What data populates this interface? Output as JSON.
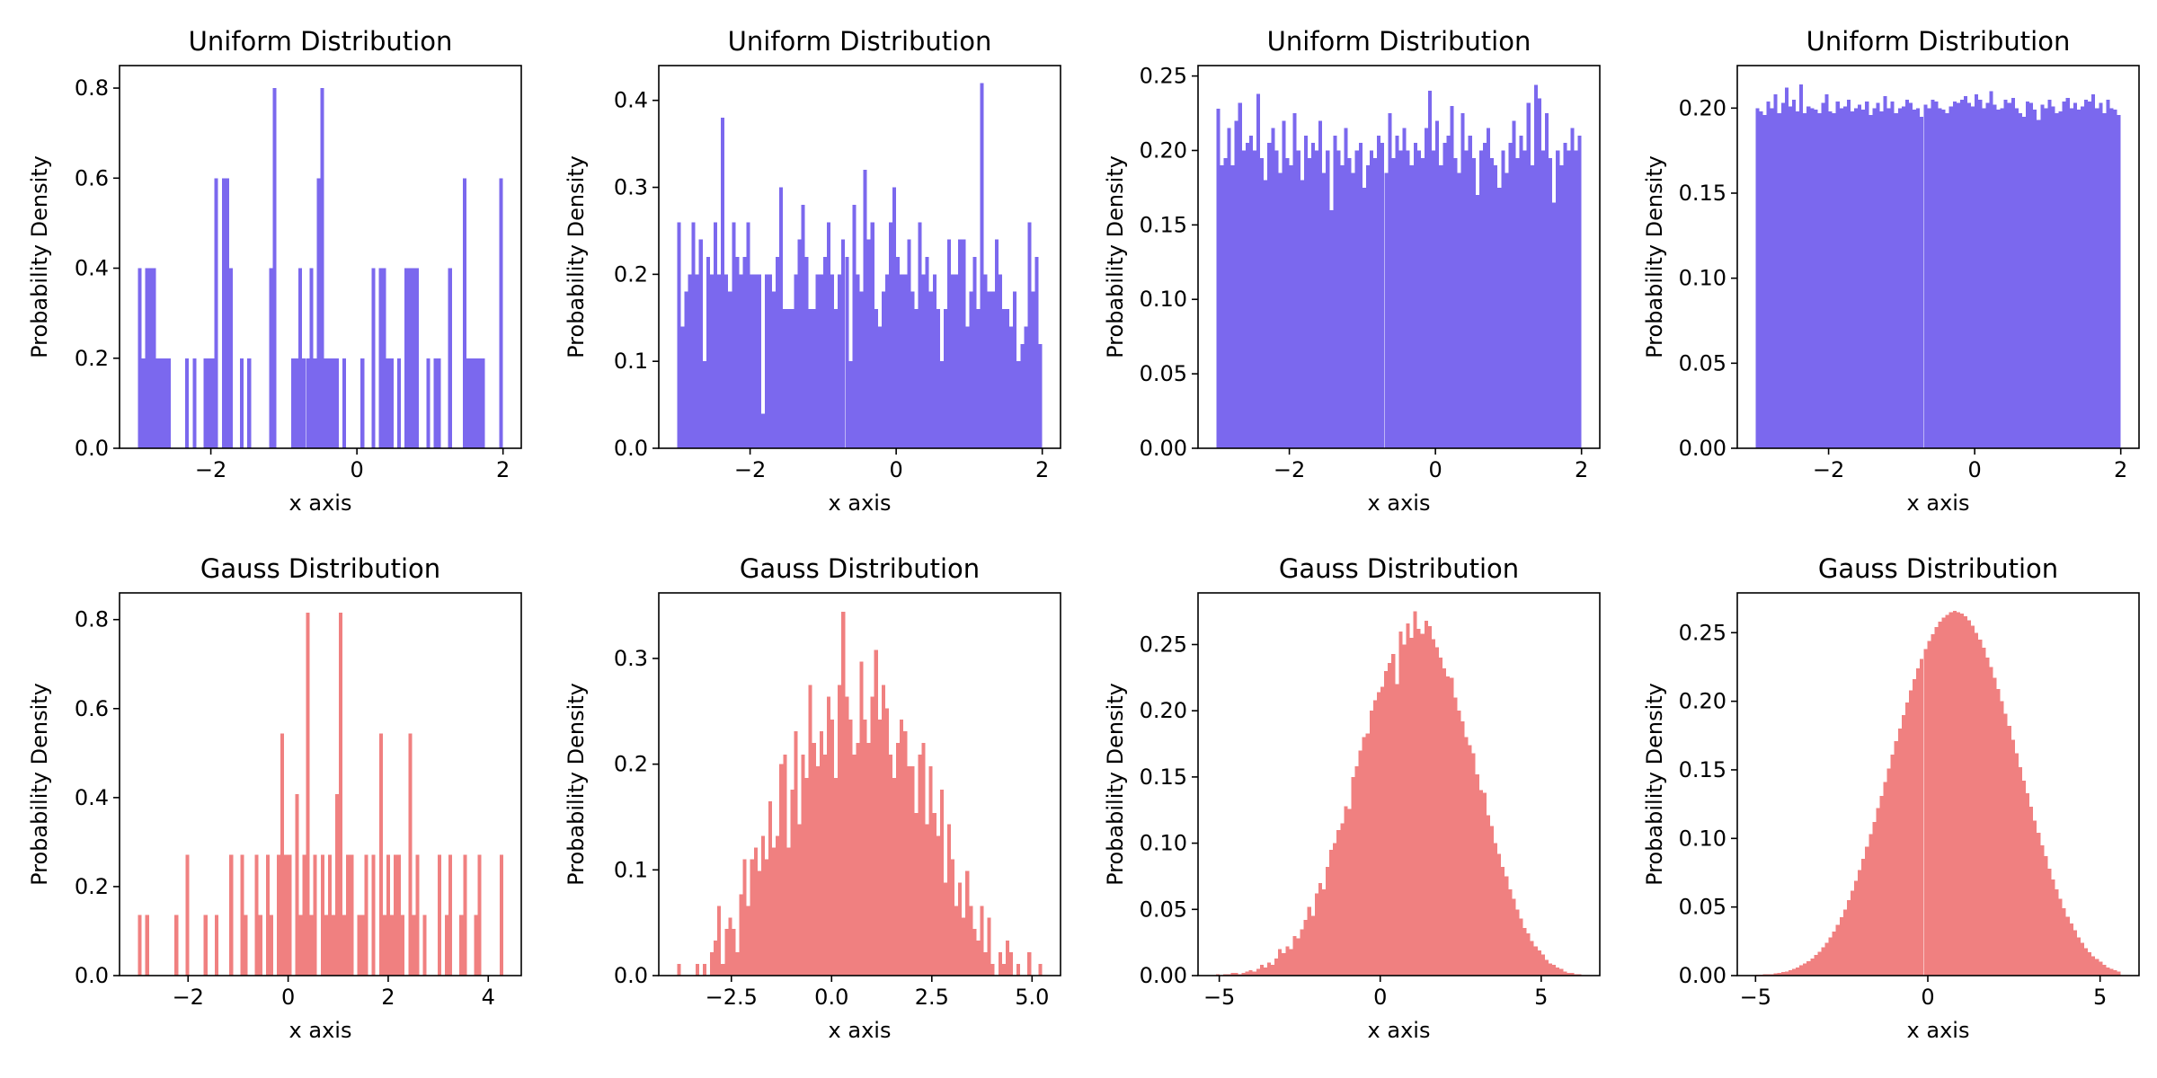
{
  "chart_data": [
    {
      "type": "histogram",
      "title": "Uniform Distribution",
      "xlabel": "x axis",
      "ylabel": "Probability Density",
      "color": "#7b68ee",
      "bins": 100,
      "range": [
        -3,
        2
      ],
      "xlim": [
        -3.25,
        2.25
      ],
      "ylim": [
        0,
        0.85
      ],
      "xticks": [
        -2,
        0,
        2
      ],
      "xticklabels": [
        "−2",
        "0",
        "2"
      ],
      "yticks": [
        0,
        0.2,
        0.4,
        0.6,
        0.8
      ],
      "yticklabels": [
        "0.0",
        "0.2",
        "0.4",
        "0.6",
        "0.8"
      ],
      "values": [
        0.4,
        0.2,
        0.4,
        0.4,
        0.4,
        0.2,
        0.2,
        0.2,
        0.2,
        0,
        0,
        0,
        0,
        0.2,
        0,
        0.2,
        0,
        0,
        0.2,
        0.2,
        0.2,
        0.6,
        0,
        0.6,
        0.6,
        0.4,
        0,
        0,
        0.2,
        0,
        0.2,
        0,
        0,
        0,
        0,
        0,
        0.4,
        0.8,
        0,
        0,
        0,
        0,
        0.2,
        0.2,
        0.4,
        0.2,
        0.2,
        0.4,
        0.2,
        0.6,
        0.8,
        0.2,
        0.2,
        0.2,
        0.2,
        0,
        0.2,
        0,
        0,
        0,
        0,
        0.2,
        0,
        0,
        0.4,
        0,
        0.4,
        0.4,
        0.2,
        0.2,
        0,
        0.2,
        0,
        0.4,
        0.4,
        0.4,
        0.4,
        0,
        0,
        0.2,
        0,
        0.2,
        0.2,
        0,
        0,
        0.4,
        0,
        0,
        0,
        0.6,
        0.2,
        0.2,
        0.2,
        0.2,
        0.2,
        0,
        0,
        0,
        0,
        0.6
      ]
    },
    {
      "type": "histogram",
      "title": "Uniform Distribution",
      "xlabel": "x axis",
      "ylabel": "Probability Density",
      "color": "#7b68ee",
      "bins": 100,
      "range": [
        -3,
        2
      ],
      "xlim": [
        -3.25,
        2.25
      ],
      "ylim": [
        0,
        0.44
      ],
      "xticks": [
        -2,
        0,
        2
      ],
      "xticklabels": [
        "−2",
        "0",
        "2"
      ],
      "yticks": [
        0,
        0.1,
        0.2,
        0.3,
        0.4
      ],
      "yticklabels": [
        "0.0",
        "0.1",
        "0.2",
        "0.3",
        "0.4"
      ],
      "values": [
        0.26,
        0.14,
        0.18,
        0.2,
        0.26,
        0.2,
        0.24,
        0.1,
        0.22,
        0.2,
        0.26,
        0.2,
        0.38,
        0.2,
        0.18,
        0.26,
        0.22,
        0.2,
        0.22,
        0.26,
        0.2,
        0.2,
        0.2,
        0.04,
        0.2,
        0.2,
        0.18,
        0.22,
        0.3,
        0.16,
        0.16,
        0.16,
        0.2,
        0.24,
        0.28,
        0.22,
        0.16,
        0.16,
        0.2,
        0.2,
        0.22,
        0.26,
        0.2,
        0.16,
        0.2,
        0.24,
        0.22,
        0.1,
        0.28,
        0.2,
        0.18,
        0.32,
        0.24,
        0.26,
        0.16,
        0.14,
        0.18,
        0.2,
        0.26,
        0.3,
        0.22,
        0.2,
        0.2,
        0.24,
        0.18,
        0.16,
        0.26,
        0.2,
        0.22,
        0.18,
        0.2,
        0.16,
        0.1,
        0.16,
        0.24,
        0.2,
        0.2,
        0.24,
        0.24,
        0.14,
        0.18,
        0.22,
        0.16,
        0.42,
        0.2,
        0.18,
        0.18,
        0.24,
        0.2,
        0.16,
        0.16,
        0.14,
        0.18,
        0.1,
        0.12,
        0.14,
        0.26,
        0.18,
        0.22,
        0.12
      ]
    },
    {
      "type": "histogram",
      "title": "Uniform Distribution",
      "xlabel": "x axis",
      "ylabel": "Probability Density",
      "color": "#7b68ee",
      "bins": 100,
      "range": [
        -3,
        2
      ],
      "xlim": [
        -3.25,
        2.25
      ],
      "ylim": [
        0,
        0.257
      ],
      "xticks": [
        -2,
        0,
        2
      ],
      "xticklabels": [
        "−2",
        "0",
        "2"
      ],
      "yticks": [
        0,
        0.05,
        0.1,
        0.15,
        0.2,
        0.25
      ],
      "yticklabels": [
        "0.00",
        "0.05",
        "0.10",
        "0.15",
        "0.20",
        "0.25"
      ],
      "values": [
        0.228,
        0.19,
        0.195,
        0.215,
        0.19,
        0.22,
        0.232,
        0.2,
        0.205,
        0.21,
        0.2,
        0.238,
        0.195,
        0.18,
        0.205,
        0.215,
        0.2,
        0.185,
        0.22,
        0.195,
        0.19,
        0.225,
        0.2,
        0.18,
        0.21,
        0.195,
        0.205,
        0.2,
        0.22,
        0.185,
        0.2,
        0.16,
        0.21,
        0.2,
        0.19,
        0.215,
        0.195,
        0.185,
        0.2,
        0.205,
        0.175,
        0.19,
        0.2,
        0.195,
        0.21,
        0.205,
        0.185,
        0.225,
        0.195,
        0.21,
        0.2,
        0.215,
        0.2,
        0.19,
        0.205,
        0.2,
        0.195,
        0.215,
        0.24,
        0.2,
        0.22,
        0.19,
        0.205,
        0.21,
        0.23,
        0.195,
        0.185,
        0.225,
        0.2,
        0.21,
        0.195,
        0.17,
        0.2,
        0.205,
        0.215,
        0.195,
        0.19,
        0.175,
        0.2,
        0.185,
        0.205,
        0.22,
        0.195,
        0.21,
        0.2,
        0.232,
        0.19,
        0.244,
        0.235,
        0.2,
        0.225,
        0.195,
        0.165,
        0.2,
        0.19,
        0.205,
        0.2,
        0.215,
        0.2,
        0.21
      ]
    },
    {
      "type": "histogram",
      "title": "Uniform Distribution",
      "xlabel": "x axis",
      "ylabel": "Probability Density",
      "color": "#7b68ee",
      "bins": 100,
      "range": [
        -3,
        2
      ],
      "xlim": [
        -3.25,
        2.25
      ],
      "ylim": [
        0,
        0.225
      ],
      "xticks": [
        -2,
        0,
        2
      ],
      "xticklabels": [
        "−2",
        "0",
        "2"
      ],
      "yticks": [
        0,
        0.05,
        0.1,
        0.15,
        0.2
      ],
      "yticklabels": [
        "0.00",
        "0.05",
        "0.10",
        "0.15",
        "0.20"
      ],
      "values": [
        0.2,
        0.198,
        0.196,
        0.204,
        0.2,
        0.208,
        0.197,
        0.203,
        0.212,
        0.201,
        0.205,
        0.198,
        0.214,
        0.197,
        0.201,
        0.2,
        0.199,
        0.197,
        0.203,
        0.208,
        0.198,
        0.197,
        0.204,
        0.2,
        0.201,
        0.205,
        0.198,
        0.2,
        0.202,
        0.199,
        0.204,
        0.196,
        0.2,
        0.203,
        0.198,
        0.207,
        0.2,
        0.204,
        0.197,
        0.2,
        0.201,
        0.205,
        0.203,
        0.199,
        0.2,
        0.195,
        0.202,
        0.2,
        0.205,
        0.204,
        0.2,
        0.199,
        0.197,
        0.201,
        0.204,
        0.203,
        0.205,
        0.207,
        0.203,
        0.201,
        0.208,
        0.205,
        0.2,
        0.203,
        0.21,
        0.202,
        0.199,
        0.2,
        0.205,
        0.203,
        0.206,
        0.2,
        0.197,
        0.195,
        0.204,
        0.203,
        0.199,
        0.193,
        0.202,
        0.2,
        0.205,
        0.201,
        0.197,
        0.198,
        0.204,
        0.206,
        0.2,
        0.203,
        0.199,
        0.201,
        0.205,
        0.204,
        0.208,
        0.2,
        0.203,
        0.197,
        0.205,
        0.2,
        0.199,
        0.196
      ]
    },
    {
      "type": "histogram",
      "title": "Gauss Distribution",
      "xlabel": "x axis",
      "ylabel": "Probability Density",
      "color": "#f08080",
      "bins": 100,
      "range": [
        -3.0,
        4.3
      ],
      "xlim": [
        -3.37,
        4.66
      ],
      "ylim": [
        0,
        0.86
      ],
      "xticks": [
        -2,
        0,
        2,
        4
      ],
      "xticklabels": [
        "−2",
        "0",
        "2",
        "4"
      ],
      "yticks": [
        0,
        0.2,
        0.4,
        0.6,
        0.8
      ],
      "yticklabels": [
        "0.0",
        "0.2",
        "0.4",
        "0.6",
        "0.8"
      ],
      "values": [
        0.136,
        0,
        0.136,
        0,
        0,
        0,
        0,
        0,
        0,
        0,
        0.136,
        0,
        0,
        0.272,
        0,
        0,
        0,
        0,
        0.136,
        0,
        0,
        0.136,
        0,
        0,
        0,
        0.272,
        0,
        0,
        0.272,
        0.136,
        0,
        0,
        0.272,
        0.136,
        0,
        0.272,
        0.136,
        0,
        0.272,
        0.544,
        0.272,
        0.272,
        0,
        0.408,
        0.136,
        0.272,
        0.816,
        0.136,
        0.272,
        0,
        0.272,
        0.136,
        0.272,
        0.136,
        0.408,
        0.816,
        0.136,
        0.272,
        0.272,
        0,
        0.136,
        0.136,
        0.272,
        0,
        0.272,
        0,
        0.544,
        0.136,
        0.272,
        0.136,
        0.272,
        0.272,
        0.136,
        0,
        0.544,
        0.136,
        0.272,
        0,
        0.136,
        0,
        0,
        0,
        0.272,
        0,
        0.136,
        0.272,
        0,
        0,
        0.136,
        0.272,
        0,
        0,
        0.136,
        0.272,
        0,
        0,
        0,
        0,
        0,
        0.272
      ]
    },
    {
      "type": "histogram",
      "title": "Gauss Distribution",
      "xlabel": "x axis",
      "ylabel": "Probability Density",
      "color": "#f08080",
      "bins": 100,
      "range": [
        -3.85,
        5.25
      ],
      "xlim": [
        -4.31,
        5.71
      ],
      "ylim": [
        0,
        0.362
      ],
      "xticks": [
        -2.5,
        0,
        2.5,
        5
      ],
      "xticklabels": [
        "−2.5",
        "0.0",
        "2.5",
        "5.0"
      ],
      "yticks": [
        0,
        0.1,
        0.2,
        0.3
      ],
      "yticklabels": [
        "0.0",
        "0.1",
        "0.2",
        "0.3"
      ],
      "values": [
        0.011,
        0,
        0,
        0,
        0,
        0.011,
        0,
        0.011,
        0,
        0.022,
        0.033,
        0.066,
        0.011,
        0.044,
        0.055,
        0.044,
        0.022,
        0.077,
        0.11,
        0.066,
        0.11,
        0.121,
        0.099,
        0.132,
        0.11,
        0.165,
        0.121,
        0.132,
        0.2,
        0.209,
        0.121,
        0.176,
        0.231,
        0.143,
        0.209,
        0.187,
        0.275,
        0.22,
        0.198,
        0.231,
        0.209,
        0.264,
        0.242,
        0.187,
        0.275,
        0.344,
        0.264,
        0.242,
        0.209,
        0.22,
        0.297,
        0.242,
        0.22,
        0.264,
        0.308,
        0.242,
        0.275,
        0.253,
        0.209,
        0.187,
        0.22,
        0.242,
        0.231,
        0.198,
        0.198,
        0.154,
        0.209,
        0.22,
        0.143,
        0.198,
        0.154,
        0.132,
        0.176,
        0.088,
        0.143,
        0.11,
        0.066,
        0.088,
        0.055,
        0.099,
        0.066,
        0.044,
        0.033,
        0.066,
        0.022,
        0.055,
        0.011,
        0,
        0.022,
        0.011,
        0.033,
        0.022,
        0,
        0.011,
        0,
        0,
        0.022,
        0,
        0,
        0.011
      ]
    },
    {
      "type": "histogram",
      "title": "Gauss Distribution",
      "xlabel": "x axis",
      "ylabel": "Probability Density",
      "color": "#f08080",
      "bins": 100,
      "range": [
        -5.1,
        6.25
      ],
      "xlim": [
        -5.66,
        6.82
      ],
      "ylim": [
        0,
        0.289
      ],
      "xticks": [
        -5,
        0,
        5
      ],
      "xticklabels": [
        "−5",
        "0",
        "5"
      ],
      "yticks": [
        0,
        0.05,
        0.1,
        0.15,
        0.2,
        0.25
      ],
      "yticklabels": [
        "0.00",
        "0.05",
        "0.10",
        "0.15",
        "0.20",
        "0.25"
      ],
      "values": [
        0.001,
        0,
        0.001,
        0.001,
        0.002,
        0.002,
        0.001,
        0.002,
        0.003,
        0.004,
        0.003,
        0.005,
        0.008,
        0.006,
        0.01,
        0.008,
        0.013,
        0.02,
        0.017,
        0.022,
        0.02,
        0.03,
        0.028,
        0.035,
        0.042,
        0.052,
        0.045,
        0.062,
        0.07,
        0.065,
        0.082,
        0.095,
        0.1,
        0.11,
        0.115,
        0.128,
        0.126,
        0.15,
        0.158,
        0.17,
        0.18,
        0.183,
        0.2,
        0.208,
        0.214,
        0.218,
        0.23,
        0.236,
        0.243,
        0.22,
        0.26,
        0.25,
        0.266,
        0.255,
        0.275,
        0.262,
        0.258,
        0.268,
        0.264,
        0.254,
        0.248,
        0.24,
        0.232,
        0.226,
        0.225,
        0.21,
        0.2,
        0.192,
        0.18,
        0.174,
        0.168,
        0.152,
        0.14,
        0.138,
        0.121,
        0.113,
        0.1,
        0.092,
        0.082,
        0.075,
        0.065,
        0.058,
        0.05,
        0.043,
        0.036,
        0.032,
        0.026,
        0.022,
        0.019,
        0.016,
        0.012,
        0.009,
        0.008,
        0.006,
        0.005,
        0.003,
        0.002,
        0.002,
        0.001,
        0.001
      ]
    },
    {
      "type": "histogram",
      "title": "Gauss Distribution",
      "xlabel": "x axis",
      "ylabel": "Probability Density",
      "color": "#f08080",
      "bins": 100,
      "range": [
        -5.0,
        5.6
      ],
      "xlim": [
        -5.53,
        6.13
      ],
      "ylim": [
        0,
        0.279
      ],
      "xticks": [
        -5,
        0,
        5
      ],
      "xticklabels": [
        "−5",
        "0",
        "5"
      ],
      "yticks": [
        0,
        0.05,
        0.1,
        0.15,
        0.2,
        0.25
      ],
      "yticklabels": [
        "0.00",
        "0.05",
        "0.10",
        "0.15",
        "0.20",
        "0.25"
      ],
      "values": [
        0.0005,
        0.0005,
        0.001,
        0.001,
        0.001,
        0.0015,
        0.002,
        0.0025,
        0.003,
        0.004,
        0.005,
        0.006,
        0.0075,
        0.009,
        0.0105,
        0.0125,
        0.015,
        0.0175,
        0.0205,
        0.024,
        0.028,
        0.032,
        0.037,
        0.0425,
        0.048,
        0.055,
        0.062,
        0.069,
        0.077,
        0.085,
        0.094,
        0.103,
        0.112,
        0.122,
        0.131,
        0.141,
        0.151,
        0.161,
        0.171,
        0.18,
        0.19,
        0.199,
        0.208,
        0.216,
        0.224,
        0.231,
        0.238,
        0.244,
        0.249,
        0.254,
        0.258,
        0.261,
        0.263,
        0.265,
        0.266,
        0.265,
        0.264,
        0.262,
        0.259,
        0.255,
        0.25,
        0.245,
        0.239,
        0.232,
        0.225,
        0.217,
        0.209,
        0.2,
        0.191,
        0.182,
        0.172,
        0.162,
        0.152,
        0.142,
        0.133,
        0.123,
        0.113,
        0.104,
        0.095,
        0.087,
        0.078,
        0.07,
        0.063,
        0.056,
        0.049,
        0.043,
        0.038,
        0.033,
        0.028,
        0.024,
        0.02,
        0.017,
        0.014,
        0.012,
        0.01,
        0.008,
        0.006,
        0.005,
        0.004,
        0.003
      ]
    }
  ]
}
